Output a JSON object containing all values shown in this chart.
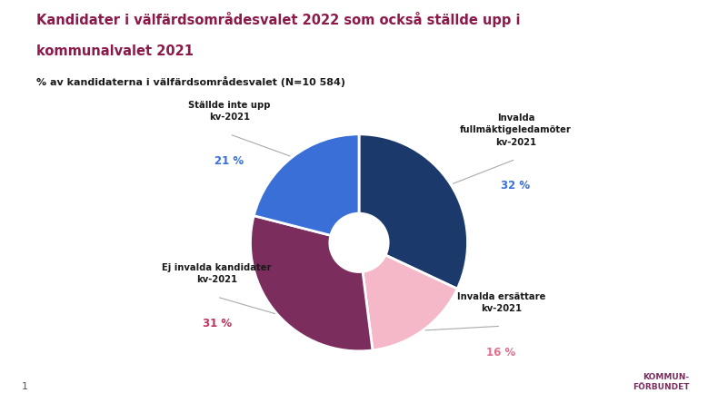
{
  "title_line1": "Kandidater i välfärdsområdesvalet 2022 som också ställde upp i",
  "title_line2": "kommunalvalet 2021",
  "subtitle": "% av kandidaterna i välfärdsområdesvalet (N=10 584)",
  "slices": [
    {
      "label": "Invalda\nfullmäktigeledamöter\nkv-2021",
      "value": 32,
      "pct_label": "32 %",
      "color": "#1b3a6b",
      "pct_color": "#3a6fd8"
    },
    {
      "label": "Invalda ersättare\nkv-2021",
      "value": 16,
      "pct_label": "16 %",
      "color": "#f5b8c8",
      "pct_color": "#e07090"
    },
    {
      "label": "Ej invalda kandidater\nkv-2021",
      "value": 31,
      "pct_label": "31 %",
      "color": "#7b2d5e",
      "pct_color": "#c0335e"
    },
    {
      "label": "Ställde inte upp\nkv-2021",
      "value": 21,
      "pct_label": "21 %",
      "color": "#3a6fd8",
      "pct_color": "#3a6fd8"
    }
  ],
  "background_color": "#ffffff",
  "title_color": "#8b1a4a",
  "subtitle_color": "#1a1a1a",
  "label_color": "#1a1a1a",
  "footer_text": "KOMMUN-\nFÖRBUNDET",
  "footer_color": "#7b2d5e",
  "page_number": "1",
  "line_color": "#aaaaaa"
}
